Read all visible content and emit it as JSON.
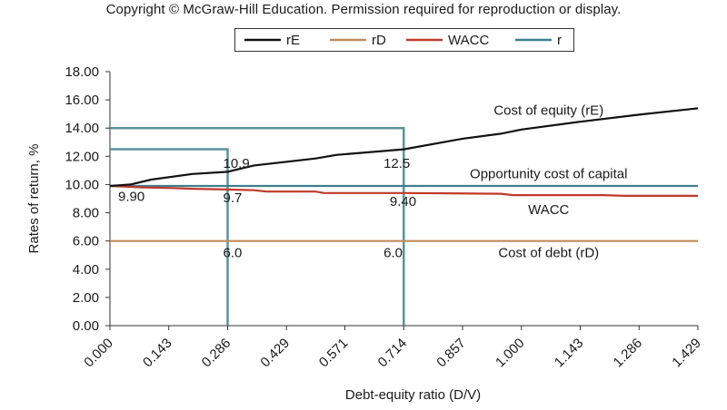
{
  "copyright": "Copyright © McGraw-Hill Education. Permission required for reproduction or display.",
  "chart_data": {
    "type": "line",
    "xlabel": "Debt-equity ratio (D/V)",
    "ylabel": "Rates of return, %",
    "xlim": [
      0,
      1.429
    ],
    "ylim": [
      0,
      18
    ],
    "x_ticks": [
      "0.000",
      "0.143",
      "0.286",
      "0.429",
      "0.571",
      "0.714",
      "0.857",
      "1.000",
      "1.143",
      "1.286",
      "1.429"
    ],
    "y_ticks": [
      "0.00",
      "2.00",
      "4.00",
      "6.00",
      "8.00",
      "10.00",
      "12.00",
      "14.00",
      "16.00",
      "18.00"
    ],
    "grid": false,
    "legend_position": "top-center",
    "series": [
      {
        "name": "rE",
        "color": "#111111",
        "points": [
          [
            0,
            9.9
          ],
          [
            0.05,
            10.0
          ],
          [
            0.1,
            10.35
          ],
          [
            0.2,
            10.75
          ],
          [
            0.286,
            10.9
          ],
          [
            0.35,
            11.35
          ],
          [
            0.5,
            11.85
          ],
          [
            0.55,
            12.1
          ],
          [
            0.714,
            12.5
          ],
          [
            0.857,
            13.25
          ],
          [
            0.95,
            13.6
          ],
          [
            1.0,
            13.9
          ],
          [
            1.143,
            14.45
          ],
          [
            1.286,
            14.95
          ],
          [
            1.429,
            15.4
          ]
        ]
      },
      {
        "name": "rD",
        "color": "#c08a5a",
        "points": [
          [
            0,
            6.0
          ],
          [
            1.429,
            6.0
          ]
        ]
      },
      {
        "name": "WACC",
        "color": "#c0392b",
        "points": [
          [
            0,
            9.9
          ],
          [
            0.08,
            9.8
          ],
          [
            0.15,
            9.75
          ],
          [
            0.2,
            9.7
          ],
          [
            0.286,
            9.65
          ],
          [
            0.35,
            9.6
          ],
          [
            0.38,
            9.5
          ],
          [
            0.5,
            9.5
          ],
          [
            0.52,
            9.4
          ],
          [
            0.714,
            9.4
          ],
          [
            0.95,
            9.35
          ],
          [
            0.98,
            9.25
          ],
          [
            1.2,
            9.25
          ],
          [
            1.25,
            9.2
          ],
          [
            1.429,
            9.2
          ]
        ]
      },
      {
        "name": "r",
        "color": "#3e7f8c",
        "points": [
          [
            0,
            9.9
          ],
          [
            1.429,
            9.9
          ]
        ]
      }
    ],
    "guides": [
      {
        "x": 0.286,
        "y": 12.5
      },
      {
        "x": 0.714,
        "y": 14.0
      }
    ],
    "annotations": [
      {
        "text": "Cost of equity (rE)",
        "x": 1.0,
        "y": 14.95
      },
      {
        "text": "Opportunity  cost of capital",
        "x": 1.0,
        "y": 10.45
      },
      {
        "text": "WACC",
        "x": 1.0,
        "y": 7.9
      },
      {
        "text": "Cost of debt (rD)",
        "x": 1.0,
        "y": 4.85
      },
      {
        "text": "10.9",
        "x": 0.275,
        "y": 11.2
      },
      {
        "text": "12.5",
        "x": 0.665,
        "y": 11.2
      },
      {
        "text": "9.90",
        "x": 0.02,
        "y": 8.85
      },
      {
        "text": "9.7",
        "x": 0.275,
        "y": 8.75
      },
      {
        "text": "9.40",
        "x": 0.68,
        "y": 8.5
      },
      {
        "text": "6.0",
        "x": 0.275,
        "y": 4.85
      },
      {
        "text": "6.0",
        "x": 0.665,
        "y": 4.85
      }
    ]
  }
}
